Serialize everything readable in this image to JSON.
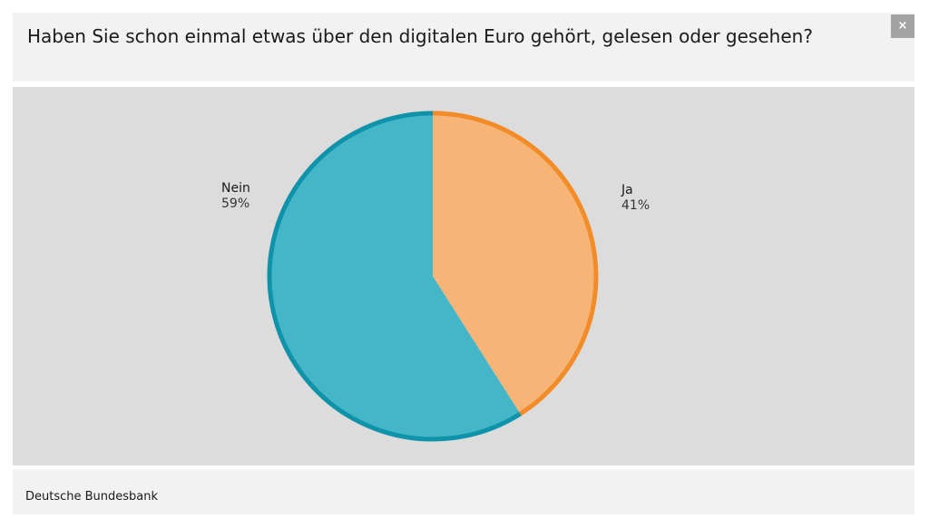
{
  "header": {
    "title": "Haben Sie schon einmal etwas über den digitalen Euro gehört, gelesen oder gesehen?",
    "close_label": "×"
  },
  "chart_data": {
    "type": "pie",
    "title": "Haben Sie schon einmal etwas über den digitalen Euro gehört, gelesen oder gesehen?",
    "slices": [
      {
        "label": "Ja",
        "value": 41,
        "value_label": "41%",
        "fill": "#f7b477",
        "stroke": "#f28c28"
      },
      {
        "label": "Nein",
        "value": 59,
        "value_label": "59%",
        "fill": "#45b6c8",
        "stroke": "#0f93aa"
      }
    ],
    "start": "12 o'clock",
    "direction": "clockwise"
  },
  "footer": {
    "source": "Deutsche Bundesbank"
  }
}
